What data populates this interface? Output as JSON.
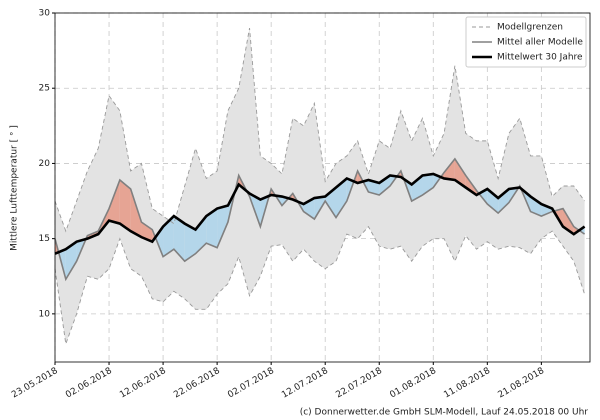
{
  "chart_data": {
    "type": "line",
    "ylabel": "Mittlere Lufttemperatur [ ° ]",
    "footer": "(c) Donnerwetter.de GmbH SLM-Modell, Lauf 24.05.2018 00 Uhr",
    "x": [
      "23.05.2018",
      "25.05.2018",
      "27.05.2018",
      "29.05.2018",
      "31.05.2018",
      "02.06.2018",
      "04.06.2018",
      "06.06.2018",
      "08.06.2018",
      "10.06.2018",
      "12.06.2018",
      "14.06.2018",
      "16.06.2018",
      "18.06.2018",
      "20.06.2018",
      "22.06.2018",
      "24.06.2018",
      "26.06.2018",
      "28.06.2018",
      "30.06.2018",
      "02.07.2018",
      "04.07.2018",
      "06.07.2018",
      "08.07.2018",
      "10.07.2018",
      "12.07.2018",
      "14.07.2018",
      "16.07.2018",
      "18.07.2018",
      "20.07.2018",
      "22.07.2018",
      "24.07.2018",
      "26.07.2018",
      "28.07.2018",
      "30.07.2018",
      "01.08.2018",
      "03.08.2018",
      "05.08.2018",
      "07.08.2018",
      "09.08.2018",
      "11.08.2018",
      "13.08.2018",
      "15.08.2018",
      "17.08.2018",
      "19.08.2018",
      "21.08.2018",
      "23.08.2018",
      "25.08.2018",
      "27.08.2018",
      "29.08.2018"
    ],
    "series": [
      {
        "name": "Modellgrenzen",
        "color": "#999999",
        "fill": "#e3e3e3",
        "upper": [
          17.5,
          15.5,
          17.5,
          19.5,
          21,
          24.5,
          23.5,
          19.5,
          20,
          17,
          16.5,
          16,
          18.5,
          21,
          19,
          19.5,
          23.5,
          25,
          29,
          20.5,
          20,
          19.3,
          23,
          22.5,
          24,
          18.8,
          20,
          20.5,
          21.5,
          19.3,
          21.5,
          21,
          23.5,
          21.5,
          23,
          20.5,
          22,
          26.5,
          22,
          21.5,
          21.5,
          19,
          22,
          23,
          20.5,
          20.5,
          17.8,
          18.5,
          18.5,
          17.5
        ],
        "lower": [
          13,
          8,
          10,
          12.5,
          12.3,
          13,
          15,
          13,
          12.5,
          11,
          10.8,
          11.5,
          11,
          10.3,
          10.3,
          11.3,
          12,
          13.8,
          11.2,
          12.5,
          14.5,
          14.6,
          13.5,
          14.3,
          13.5,
          13,
          13.5,
          15.3,
          15,
          15.8,
          14.5,
          14.3,
          14.5,
          13.5,
          14.5,
          15,
          15,
          13.5,
          15.2,
          14.3,
          14.8,
          14.3,
          14.5,
          14.4,
          14,
          15,
          15.5,
          14.5,
          13.5,
          11.3
        ]
      },
      {
        "name": "Mittel aller Modelle",
        "color": "#808080",
        "above_color": "#e6a494",
        "below_color": "#b4d6ea",
        "values": [
          15,
          12.3,
          13.5,
          15.2,
          15.5,
          17,
          18.9,
          18.3,
          16.1,
          15.6,
          13.8,
          14.3,
          13.5,
          14,
          14.7,
          14.4,
          16.1,
          19.2,
          17.8,
          15.8,
          18.3,
          17.2,
          18,
          16.8,
          16.3,
          17.5,
          16.4,
          17.5,
          19.5,
          18.1,
          17.9,
          18.5,
          19.5,
          17.5,
          17.9,
          18.4,
          19.4,
          20.3,
          19.2,
          18.2,
          17.3,
          16.7,
          17.4,
          18.5,
          16.8,
          16.5,
          16.8,
          17,
          15.8,
          15.3
        ]
      },
      {
        "name": "Mittelwert 30 Jahre",
        "color": "#000000",
        "values": [
          14,
          14.3,
          14.8,
          15,
          15.3,
          16.2,
          16,
          15.5,
          15.1,
          14.8,
          15.8,
          16.5,
          16,
          15.6,
          16.5,
          17,
          17.2,
          18.6,
          18,
          17.6,
          17.9,
          17.8,
          17.6,
          17.3,
          17.7,
          17.8,
          18.4,
          19,
          18.7,
          18.9,
          18.7,
          19.2,
          19.1,
          18.6,
          19.2,
          19.3,
          19,
          18.9,
          18.4,
          17.9,
          18.3,
          17.7,
          18.3,
          18.4,
          17.8,
          17.3,
          17,
          15.8,
          15.3,
          15.8
        ]
      }
    ],
    "xlim": [
      "23.05.2018",
      "30.08.2018"
    ],
    "xticks": [
      "23.05.2018",
      "02.06.2018",
      "12.06.2018",
      "22.06.2018",
      "02.07.2018",
      "12.07.2018",
      "22.07.2018",
      "01.08.2018",
      "11.08.2018",
      "21.08.2018"
    ],
    "ylim": [
      6.8,
      30
    ],
    "yticks": [
      10,
      15,
      20,
      25,
      30
    ],
    "grid": true,
    "legend": "upper right"
  }
}
